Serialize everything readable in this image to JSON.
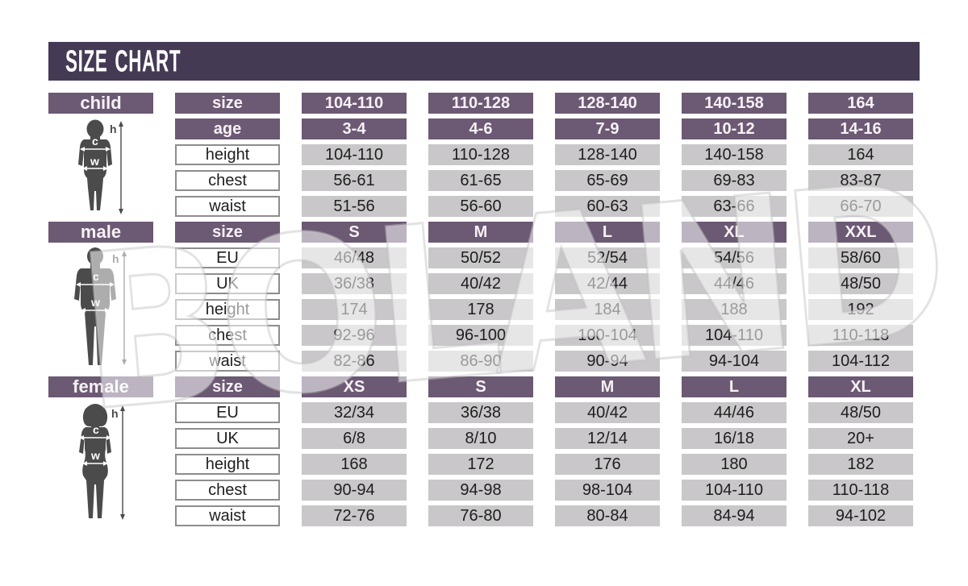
{
  "title": "SIZE CHART",
  "watermark": "BOLAND",
  "colors": {
    "title_bar": "#453a54",
    "header_purple": "#6c5974",
    "header_text": "#f7f1f5",
    "data_cell": "#c9c7c9",
    "label_border": "#8d8d8d",
    "silhouette": "#4b4b4b"
  },
  "figures": {
    "height_label": "h",
    "chest_label": "c",
    "waist_label": "w"
  },
  "sections": [
    {
      "id": "child",
      "label": "child",
      "rows": [
        {
          "label": "size",
          "style": "header",
          "values": [
            "104-110",
            "110-128",
            "128-140",
            "140-158",
            "164"
          ]
        },
        {
          "label": "age",
          "style": "header",
          "values": [
            "3-4",
            "4-6",
            "7-9",
            "10-12",
            "14-16"
          ]
        },
        {
          "label": "height",
          "style": "data",
          "values": [
            "104-110",
            "110-128",
            "128-140",
            "140-158",
            "164"
          ]
        },
        {
          "label": "chest",
          "style": "data",
          "values": [
            "56-61",
            "61-65",
            "65-69",
            "69-83",
            "83-87"
          ]
        },
        {
          "label": "waist",
          "style": "data",
          "values": [
            "51-56",
            "56-60",
            "60-63",
            "63-66",
            "66-70"
          ]
        }
      ]
    },
    {
      "id": "male",
      "label": "male",
      "rows": [
        {
          "label": "size",
          "style": "header",
          "values": [
            "S",
            "M",
            "L",
            "XL",
            "XXL"
          ]
        },
        {
          "label": "EU",
          "style": "data",
          "values": [
            "46/48",
            "50/52",
            "52/54",
            "54/56",
            "58/60"
          ]
        },
        {
          "label": "UK",
          "style": "data",
          "values": [
            "36/38",
            "40/42",
            "42/44",
            "44/46",
            "48/50"
          ]
        },
        {
          "label": "height",
          "style": "data",
          "values": [
            "174",
            "178",
            "184",
            "188",
            "192"
          ]
        },
        {
          "label": "chest",
          "style": "data",
          "values": [
            "92-96",
            "96-100",
            "100-104",
            "104-110",
            "110-118"
          ]
        },
        {
          "label": "waist",
          "style": "data",
          "values": [
            "82-86",
            "86-90",
            "90-94",
            "94-104",
            "104-112"
          ]
        }
      ]
    },
    {
      "id": "female",
      "label": "female",
      "rows": [
        {
          "label": "size",
          "style": "header",
          "values": [
            "XS",
            "S",
            "M",
            "L",
            "XL"
          ]
        },
        {
          "label": "EU",
          "style": "data",
          "values": [
            "32/34",
            "36/38",
            "40/42",
            "44/46",
            "48/50"
          ]
        },
        {
          "label": "UK",
          "style": "data",
          "values": [
            "6/8",
            "8/10",
            "12/14",
            "16/18",
            "20+"
          ]
        },
        {
          "label": "height",
          "style": "data",
          "values": [
            "168",
            "172",
            "176",
            "180",
            "182"
          ]
        },
        {
          "label": "chest",
          "style": "data",
          "values": [
            "90-94",
            "94-98",
            "98-104",
            "104-110",
            "110-118"
          ]
        },
        {
          "label": "waist",
          "style": "data",
          "values": [
            "72-76",
            "76-80",
            "80-84",
            "84-94",
            "94-102"
          ]
        }
      ]
    }
  ]
}
